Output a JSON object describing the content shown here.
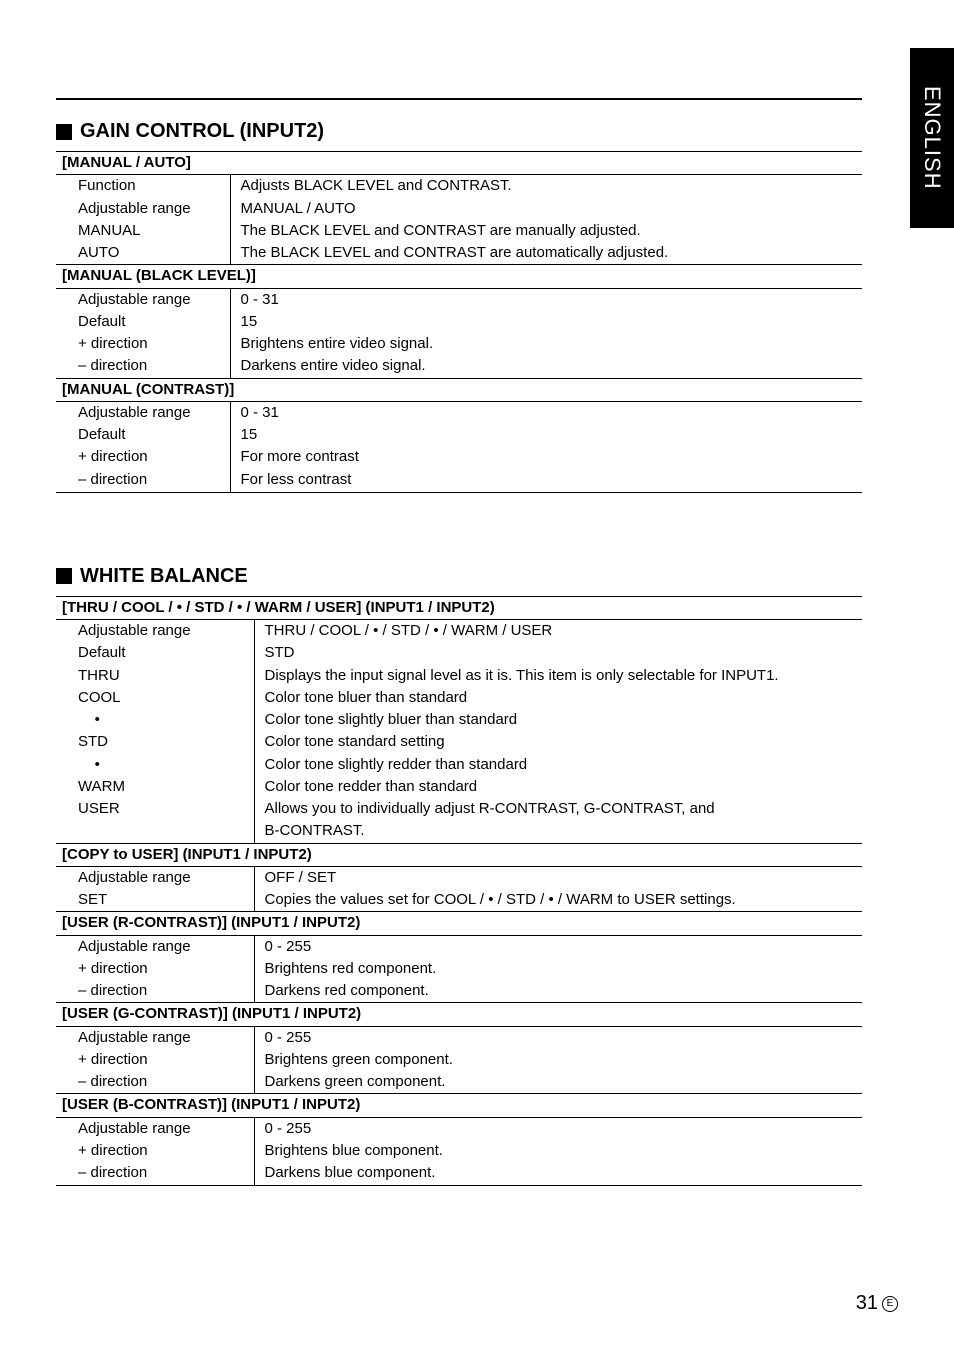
{
  "side_tab": "ENGLISH",
  "page_number": "31",
  "page_letter": "E",
  "gain_control": {
    "title": "GAIN CONTROL (INPUT2)",
    "groups": [
      {
        "header": "[MANUAL / AUTO]",
        "rows": [
          {
            "label": "Function",
            "value": "Adjusts BLACK LEVEL and CONTRAST."
          },
          {
            "label": "Adjustable range",
            "value": "MANUAL / AUTO"
          },
          {
            "label": "MANUAL",
            "value": "The BLACK LEVEL and CONTRAST are manually adjusted."
          },
          {
            "label": "AUTO",
            "value": "The BLACK LEVEL and CONTRAST are automatically adjusted."
          }
        ]
      },
      {
        "header": "[MANUAL (BLACK LEVEL)]",
        "rows": [
          {
            "label": "Adjustable range",
            "value": "0 - 31"
          },
          {
            "label": "Default",
            "value": "15"
          },
          {
            "label": "+ direction",
            "value": "Brightens entire video signal."
          },
          {
            "label": "– direction",
            "value": "Darkens entire video signal."
          }
        ]
      },
      {
        "header": "[MANUAL (CONTRAST)]",
        "rows": [
          {
            "label": "Adjustable range",
            "value": "0 - 31"
          },
          {
            "label": "Default",
            "value": "15"
          },
          {
            "label": "+ direction",
            "value": "For more contrast"
          },
          {
            "label": "– direction",
            "value": "For less contrast"
          }
        ]
      }
    ]
  },
  "white_balance": {
    "title": "WHITE BALANCE",
    "groups": [
      {
        "header": "[THRU / COOL / • / STD / • / WARM / USER] (INPUT1 / INPUT2)",
        "rows": [
          {
            "label": "Adjustable range",
            "value": "THRU / COOL / • / STD / • / WARM / USER"
          },
          {
            "label": "Default",
            "value": "STD"
          },
          {
            "label": "THRU",
            "value": "Displays the input signal level as it is. This item is only selectable for INPUT1."
          },
          {
            "label": "COOL",
            "value": "Color tone bluer than standard"
          },
          {
            "label": "    •",
            "value": "Color tone slightly bluer than standard"
          },
          {
            "label": "STD",
            "value": "Color tone standard setting"
          },
          {
            "label": "    •",
            "value": "Color tone slightly redder than standard"
          },
          {
            "label": "WARM",
            "value": "Color tone redder than standard"
          },
          {
            "label": "USER",
            "value": "Allows you to individually adjust R-CONTRAST, G-CONTRAST, and"
          },
          {
            "label": "",
            "value": "B-CONTRAST."
          }
        ]
      },
      {
        "header": "[COPY to USER] (INPUT1 / INPUT2)",
        "rows": [
          {
            "label": "Adjustable range",
            "value": "OFF / SET"
          },
          {
            "label": "SET",
            "value": "Copies the values set for COOL / • / STD / • / WARM to USER settings."
          }
        ]
      },
      {
        "header": "[USER (R-CONTRAST)] (INPUT1 / INPUT2)",
        "rows": [
          {
            "label": "Adjustable range",
            "value": "0 - 255"
          },
          {
            "label": "+ direction",
            "value": "Brightens red component."
          },
          {
            "label": "– direction",
            "value": "Darkens red component."
          }
        ]
      },
      {
        "header": "[USER (G-CONTRAST)] (INPUT1 / INPUT2)",
        "rows": [
          {
            "label": "Adjustable range",
            "value": "0 - 255"
          },
          {
            "label": "+ direction",
            "value": "Brightens green component."
          },
          {
            "label": "– direction",
            "value": "Darkens green component."
          }
        ]
      },
      {
        "header": "[USER (B-CONTRAST)] (INPUT1 / INPUT2)",
        "rows": [
          {
            "label": "Adjustable range",
            "value": "0 - 255"
          },
          {
            "label": "+ direction",
            "value": "Brightens blue component."
          },
          {
            "label": "– direction",
            "value": "Darkens blue component."
          }
        ]
      }
    ]
  }
}
